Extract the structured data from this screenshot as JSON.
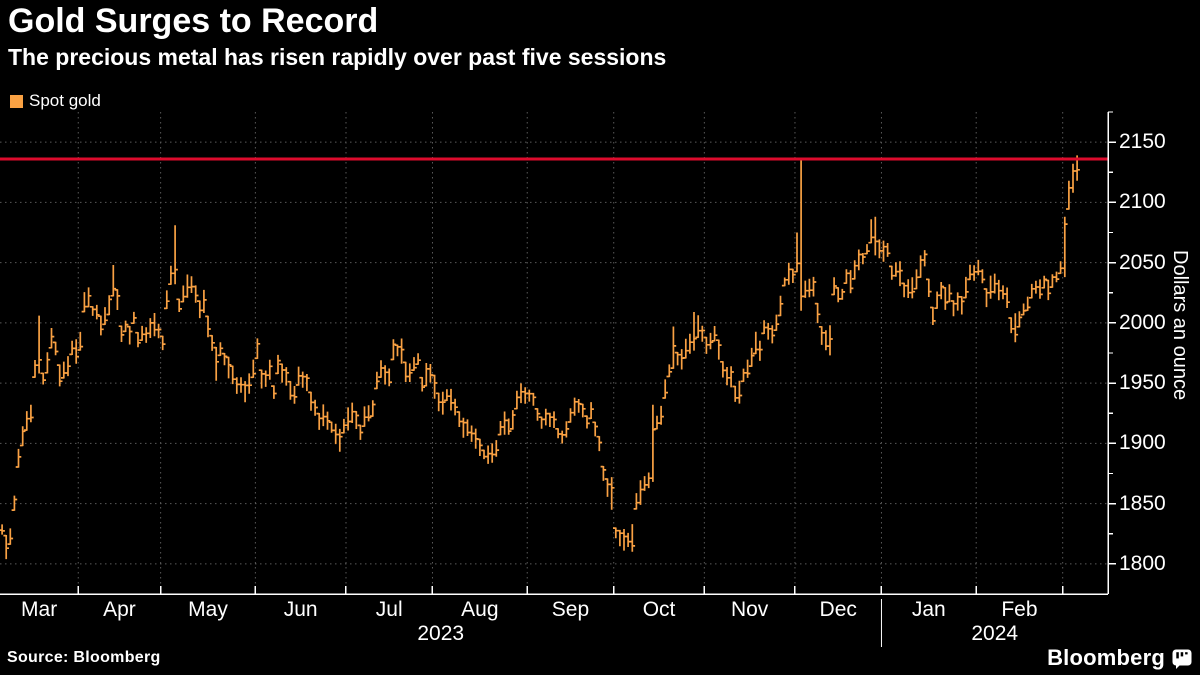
{
  "header": {
    "title": "Gold Surges to Record",
    "subtitle": "The precious metal has risen rapidly over past five sessions"
  },
  "legend": {
    "label": "Spot gold",
    "swatch_color": "#f9a143"
  },
  "source": {
    "label": "Source: Bloomberg"
  },
  "branding": {
    "logo_text": "Bloomberg",
    "logo_icon": "bloomberg-chart-bubble-icon"
  },
  "colors": {
    "background": "#000000",
    "text": "#ffffff",
    "bars": "#f9a143",
    "record_line": "#dd0b2d",
    "grid": "#5a5a5a",
    "axis": "#ffffff"
  },
  "chart_data": {
    "type": "hlc-bar",
    "title": "Gold Surges to Record",
    "subtitle": "The precious metal has risen rapidly over past five sessions",
    "series": [
      {
        "name": "Spot gold",
        "color": "#f9a143"
      }
    ],
    "ylabel": "Dollars an ounce",
    "ylim": [
      1775,
      2175
    ],
    "yticks": [
      1800,
      1850,
      1900,
      1950,
      2000,
      2050,
      2100,
      2150
    ],
    "y_minor_ticks": [
      1825,
      1875,
      1925,
      1975,
      2025,
      2075,
      2125,
      2175
    ],
    "grid": true,
    "legend_position": "top-left",
    "record_line": {
      "value": 2136,
      "color": "#dd0b2d"
    },
    "x_start_date": "2023-03-07",
    "x_end_date": "2024-03-06",
    "months": [
      {
        "label": "Mar",
        "days": 19
      },
      {
        "label": "Apr",
        "days": 20
      },
      {
        "label": "May",
        "days": 23
      },
      {
        "label": "Jun",
        "days": 22
      },
      {
        "label": "Jul",
        "days": 21
      },
      {
        "label": "Aug",
        "days": 23
      },
      {
        "label": "Sep",
        "days": 21
      },
      {
        "label": "Oct",
        "days": 22
      },
      {
        "label": "Nov",
        "days": 22
      },
      {
        "label": "Dec",
        "days": 21
      },
      {
        "label": "Jan",
        "days": 23
      },
      {
        "label": "Feb",
        "days": 21
      },
      {
        "label": "",
        "days": 11
      }
    ],
    "years": [
      {
        "label": "2023",
        "from_boundary": 0,
        "to_boundary": 10
      },
      {
        "label": "2024",
        "from_boundary": 10,
        "to_boundary": 13
      }
    ],
    "bar_typical_range_dollars": 16,
    "daily_mid": [
      1828,
      1815,
      1822,
      1850,
      1890,
      1905,
      1918,
      1925,
      1962,
      1980,
      1955,
      1968,
      1988,
      1978,
      1956,
      1962,
      1966,
      1980,
      1976,
      1984,
      2016,
      2020,
      2010,
      2007,
      1996,
      2008,
      2014,
      2037,
      2018,
      1993,
      1996,
      1990,
      2003,
      1986,
      1990,
      1992,
      1996,
      1998,
      1994,
      1984,
      2018,
      2038,
      2056,
      2016,
      2024,
      2031,
      2030,
      2027,
      2012,
      2017,
      1996,
      1983,
      1963,
      1977,
      1971,
      1962,
      1959,
      1949,
      1947,
      1944,
      1951,
      1964,
      1977,
      1951,
      1956,
      1961,
      1944,
      1963,
      1959,
      1957,
      1944,
      1941,
      1957,
      1956,
      1949,
      1937,
      1931,
      1916,
      1922,
      1921,
      1914,
      1909,
      1902,
      1912,
      1921,
      1926,
      1919,
      1911,
      1924,
      1924,
      1931,
      1954,
      1959,
      1957,
      1954,
      1977,
      1976,
      1977,
      1961,
      1961,
      1964,
      1971,
      1949,
      1957,
      1961,
      1947,
      1934,
      1934,
      1941,
      1937,
      1927,
      1919,
      1914,
      1912,
      1907,
      1902,
      1894,
      1891,
      1889,
      1891,
      1897,
      1914,
      1916,
      1913,
      1919,
      1936,
      1941,
      1939,
      1939,
      1937,
      1925,
      1916,
      1919,
      1919,
      1921,
      1909,
      1907,
      1911,
      1922,
      1932,
      1931,
      1929,
      1919,
      1924,
      1914,
      1901,
      1874,
      1864,
      1849,
      1826,
      1822,
      1819,
      1819,
      1817,
      1854,
      1859,
      1867,
      1871,
      1908,
      1919,
      1924,
      1947,
      1961,
      1983,
      1971,
      1971,
      1977,
      1981,
      1996,
      1996,
      1989,
      1984,
      1987,
      1991,
      1977,
      1964,
      1954,
      1954,
      1942,
      1941,
      1957,
      1964,
      1974,
      1984,
      1977,
      1997,
      1991,
      1991,
      1999,
      2014,
      2034,
      2041,
      2037,
      2058,
      2070,
      2026,
      2028,
      2029,
      2009,
      1991,
      1986,
      1986,
      2028,
      2021,
      2024,
      2039,
      2034,
      2044,
      2051,
      2054,
      2061,
      2078,
      2071,
      2064,
      2061,
      2059,
      2041,
      2044,
      2041,
      2029,
      2027,
      2029,
      2034,
      2047,
      2051,
      2029,
      2007,
      2019,
      2027,
      2021,
      2027,
      2011,
      2019,
      2017,
      2029,
      2041,
      2039,
      2047,
      2039,
      2021,
      2029,
      2031,
      2027,
      2027,
      2019,
      1997,
      1994,
      2001,
      2011,
      2017,
      2027,
      2031,
      2029,
      2034,
      2029,
      2034,
      2039,
      2045,
      2062,
      2106,
      2122,
      2129
    ],
    "daily_overrides": {
      "1": [
        1824,
        1804
      ],
      "9": [
        2006,
        1958
      ],
      "27": [
        2048,
        2022
      ],
      "42": [
        2081,
        2032
      ],
      "52": [
        1980,
        1952
      ],
      "82": [
        1912,
        1893
      ],
      "97": [
        1987,
        1966
      ],
      "119": [
        1900,
        1884
      ],
      "148": [
        1872,
        1845
      ],
      "153": [
        1833,
        1810
      ],
      "158": [
        1932,
        1868
      ],
      "163": [
        1997,
        1962
      ],
      "168": [
        2009,
        1977
      ],
      "179": [
        1952,
        1933
      ],
      "193": [
        2075,
        2042
      ],
      "194": [
        2135,
        2010,
        2022
      ],
      "201": [
        1998,
        1973
      ],
      "211": [
        2086,
        2066
      ],
      "212": [
        2088,
        2056
      ],
      "246": [
        2008,
        1984
      ],
      "258": [
        2088,
        2038,
        2082
      ],
      "259": [
        2118,
        2094,
        2112
      ],
      "260": [
        2132,
        2108,
        2126
      ],
      "261": [
        2139,
        2118,
        2127
      ]
    }
  }
}
